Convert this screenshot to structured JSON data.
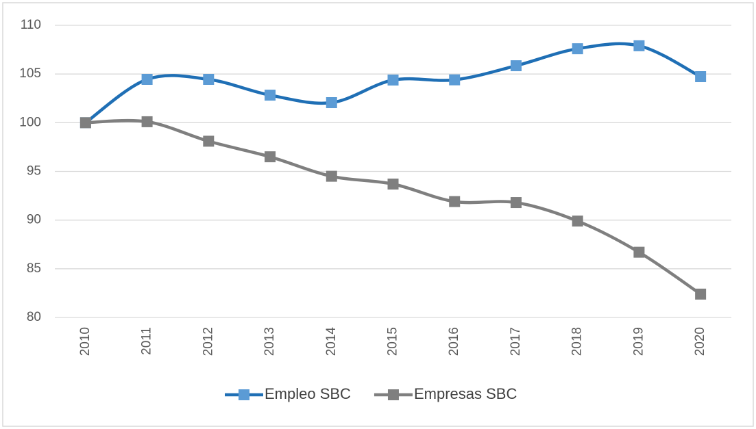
{
  "chart_data": {
    "type": "line",
    "categories": [
      "2010",
      "2011",
      "2012",
      "2013",
      "2014",
      "2015",
      "2016",
      "2017",
      "2018",
      "2019",
      "2020"
    ],
    "series": [
      {
        "name": "Empleo SBC",
        "color": "#1f6fb5",
        "marker_color": "#5b9bd5",
        "values": [
          100,
          104.45,
          104.45,
          102.83,
          102.06,
          104.38,
          104.4,
          105.85,
          107.6,
          107.9,
          104.73
        ]
      },
      {
        "name": "Empresas SBC",
        "color": "#7f7f7f",
        "marker_color": "#7f7f7f",
        "values": [
          100,
          100.1,
          98.1,
          96.5,
          94.5,
          93.7,
          91.9,
          91.8,
          89.9,
          86.7,
          82.4
        ]
      }
    ],
    "ylim": [
      80,
      110
    ],
    "yticks": [
      80,
      85,
      90,
      95,
      100,
      105,
      110
    ],
    "grid": true,
    "smooth": true,
    "legend": "bottom"
  }
}
